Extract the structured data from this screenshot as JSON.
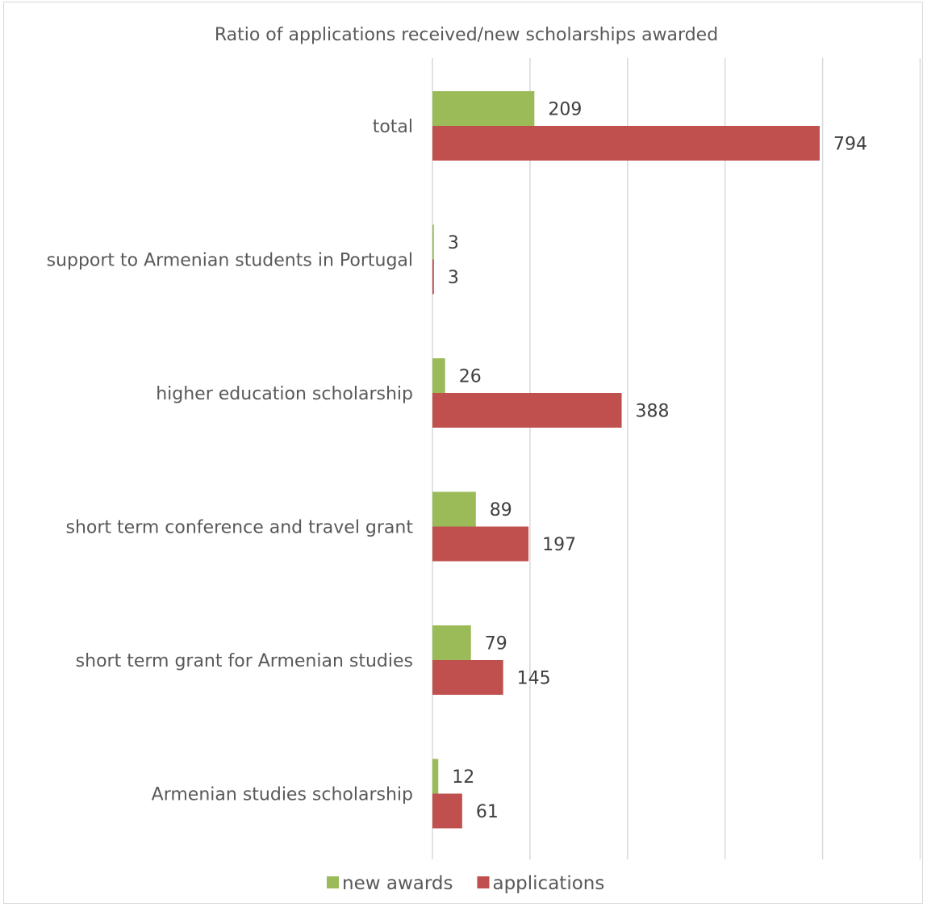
{
  "chart_data": {
    "type": "bar",
    "orientation": "horizontal",
    "title": "Ratio of applications received/new scholarships awarded",
    "xlabel": "",
    "ylabel": "",
    "xlim": [
      0,
      1000
    ],
    "grid": "vertical",
    "legend_position": "bottom",
    "categories": [
      "total",
      "support to Armenian students in Portugal",
      "higher education scholarship",
      "short term conference and travel grant",
      "short term grant for Armenian studies",
      "Armenian studies scholarship"
    ],
    "series": [
      {
        "name": "new awards",
        "color": "#9BBB59",
        "values": [
          209,
          3,
          26,
          89,
          79,
          12
        ]
      },
      {
        "name": "applications",
        "color": "#C0504D",
        "values": [
          794,
          3,
          388,
          197,
          145,
          61
        ]
      }
    ]
  },
  "colors": {
    "gridline": "#d9d9d9",
    "text": "#595959"
  }
}
